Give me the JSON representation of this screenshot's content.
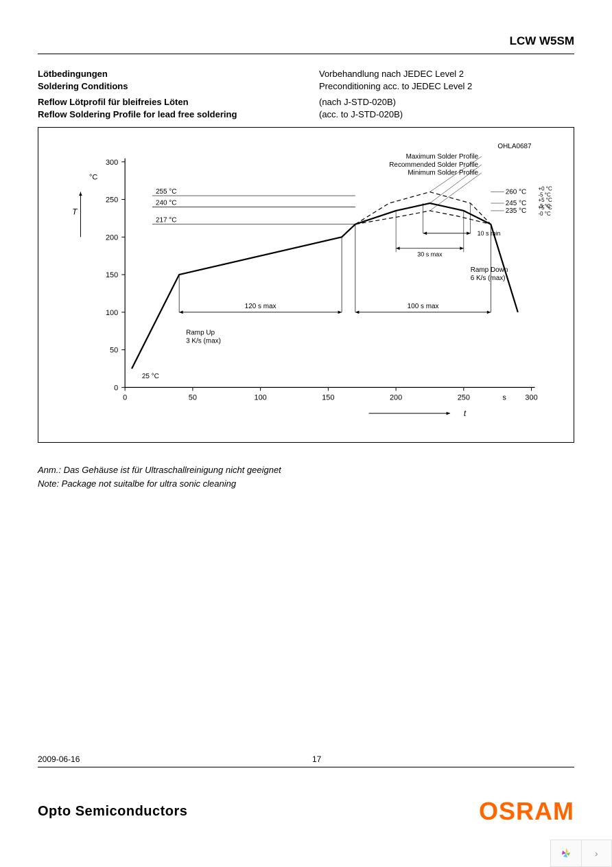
{
  "header": {
    "product": "LCW W5SM"
  },
  "info": {
    "rows": [
      {
        "left": "Lötbedingungen",
        "right": "Vorbehandlung nach JEDEC Level 2",
        "bold": true
      },
      {
        "left": "Soldering Conditions",
        "right": "Preconditioning acc. to JEDEC Level 2",
        "bold": true
      },
      {
        "left": "Reflow Lötprofil für bleifreies Löten",
        "right": "(nach J-STD-020B)",
        "bold": true,
        "rightBold": false
      },
      {
        "left": "Reflow Soldering Profile for lead free soldering",
        "right": "(acc. to J-STD-020B)",
        "bold": true,
        "rightBold": false
      }
    ]
  },
  "chart": {
    "code": "OHLA0687",
    "y_unit": "°C",
    "y_axis_var": "T",
    "x_axis_var": "t",
    "x_unit": "s",
    "xlim": [
      0,
      300
    ],
    "ylim": [
      0,
      300
    ],
    "x_ticks": [
      0,
      50,
      100,
      150,
      200,
      250,
      300
    ],
    "y_ticks": [
      0,
      50,
      100,
      150,
      200,
      250,
      300
    ],
    "profile_labels": [
      "Maximum Solder Profile",
      "Recommended Solder Profile",
      "Minimum Solder Profile"
    ],
    "temp_ref_lines": [
      {
        "label": "255 °C",
        "y": 255
      },
      {
        "label": "240 °C",
        "y": 240
      },
      {
        "label": "217 °C",
        "y": 217
      }
    ],
    "peak_labels": [
      {
        "t": "260 °C",
        "tol": "+0 °C\n-5 °C"
      },
      {
        "t": "245 °C",
        "tol": "+5 °C\n-5 °C"
      },
      {
        "t": "235 °C",
        "tol": "+5 °C\n-0 °C"
      }
    ],
    "annotations": {
      "ramp_up": "Ramp Up\n3 K/s (max)",
      "start_temp": "25 °C",
      "span_120s": "120 s max",
      "span_100s": "100 s max",
      "span_30s": "30 s max",
      "span_10s": "10 s min",
      "ramp_down": "Ramp Down\n6 K/s (max)"
    },
    "recommended_profile": [
      [
        5,
        25
      ],
      [
        40,
        150
      ],
      [
        160,
        200
      ],
      [
        170,
        217
      ],
      [
        200,
        235
      ],
      [
        225,
        245
      ],
      [
        250,
        235
      ],
      [
        270,
        217
      ],
      [
        290,
        100
      ]
    ],
    "max_profile": [
      [
        170,
        217
      ],
      [
        195,
        245
      ],
      [
        225,
        260
      ],
      [
        255,
        245
      ],
      [
        270,
        217
      ]
    ],
    "min_profile": [
      [
        170,
        217
      ],
      [
        205,
        228
      ],
      [
        225,
        235
      ],
      [
        245,
        228
      ],
      [
        270,
        217
      ]
    ],
    "colors": {
      "axis": "#000000",
      "grid": "#000000",
      "line_main": "#000000",
      "line_dash": "#000000",
      "background": "#ffffff"
    },
    "line_widths": {
      "main": 2.2,
      "dash": 1.2,
      "thin": 0.8
    },
    "dash_pattern": "6,4",
    "font_size_label": 11,
    "font_size_small": 9
  },
  "notes": {
    "de": "Anm.: Das Gehäuse ist für Ultraschallreinigung nicht geeignet",
    "en": "Note: Package not suitalbe for ultra sonic cleaning"
  },
  "footer": {
    "date": "2009-06-16",
    "page": "17",
    "division": "Opto Semiconductors",
    "brand": "OSRAM"
  }
}
